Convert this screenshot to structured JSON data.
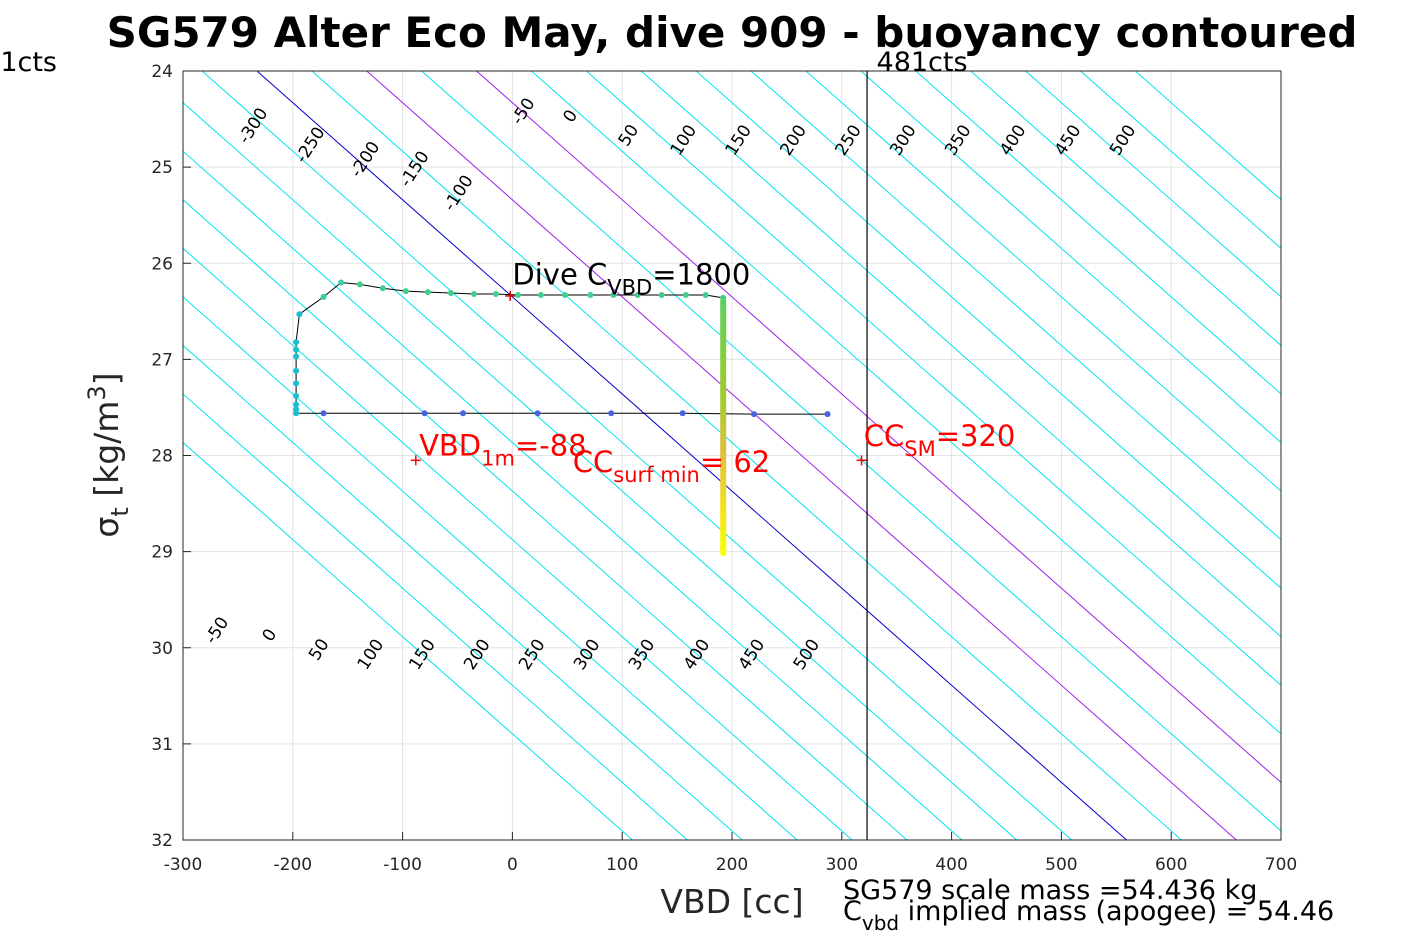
{
  "chart_data": {
    "type": "scatter",
    "title": "SG579 Alter Eco May, dive 909 - buoyancy contoured",
    "xlabel": "VBD [cc]",
    "ylabel": "σ_t [kg/m^3]",
    "xlim": [
      -300,
      700
    ],
    "ylim": [
      24,
      32
    ],
    "y_reversed": true,
    "grid": true,
    "x_ticks": [
      "-300",
      "-200",
      "-100",
      "0",
      "100",
      "200",
      "300",
      "400",
      "500",
      "600",
      "700"
    ],
    "y_ticks": [
      "24",
      "25",
      "26",
      "27",
      "28",
      "29",
      "30",
      "31",
      "32"
    ],
    "contour_slope_cc_per_sigma": 99,
    "contours": [
      {
        "level": -300,
        "color": "#00e5ee"
      },
      {
        "level": -250,
        "color": "#00e5ee"
      },
      {
        "level": -200,
        "color": "#00e5ee"
      },
      {
        "level": -150,
        "color": "#00e5ee"
      },
      {
        "level": -100,
        "color": "#00e5ee"
      },
      {
        "level": -50,
        "color": "#00e5ee"
      },
      {
        "level": 0,
        "color": "#0000cc"
      },
      {
        "level": 50,
        "color": "#00e5ee"
      },
      {
        "level": 100,
        "color": "#a020f0"
      },
      {
        "level": 150,
        "color": "#00e5ee"
      },
      {
        "level": 200,
        "color": "#a020f0"
      },
      {
        "level": 250,
        "color": "#00e5ee"
      },
      {
        "level": 300,
        "color": "#00e5ee"
      },
      {
        "level": 350,
        "color": "#00e5ee"
      },
      {
        "level": 400,
        "color": "#00e5ee"
      },
      {
        "level": 450,
        "color": "#00e5ee"
      },
      {
        "level": 500,
        "color": "#00e5ee"
      }
    ],
    "top_labels": [
      {
        "text": "-300",
        "x": -232,
        "y": 24.6
      },
      {
        "text": "-250",
        "x": -180,
        "y": 24.8
      },
      {
        "text": "-200",
        "x": -130,
        "y": 24.95
      },
      {
        "text": "-150",
        "x": -85,
        "y": 25.05
      },
      {
        "text": "-100",
        "x": -45,
        "y": 25.3
      },
      {
        "text": "-50",
        "x": 14,
        "y": 24.45
      },
      {
        "text": "0",
        "x": 57,
        "y": 24.5
      },
      {
        "text": "50",
        "x": 110,
        "y": 24.7
      },
      {
        "text": "100",
        "x": 160,
        "y": 24.75
      },
      {
        "text": "150",
        "x": 210,
        "y": 24.75
      },
      {
        "text": "200",
        "x": 260,
        "y": 24.75
      },
      {
        "text": "250",
        "x": 310,
        "y": 24.75
      },
      {
        "text": "300",
        "x": 360,
        "y": 24.75
      },
      {
        "text": "350",
        "x": 410,
        "y": 24.75
      },
      {
        "text": "400",
        "x": 460,
        "y": 24.75
      },
      {
        "text": "450",
        "x": 510,
        "y": 24.75
      },
      {
        "text": "500",
        "x": 560,
        "y": 24.75
      }
    ],
    "bottom_labels": [
      {
        "text": "-50",
        "x": -265,
        "y": 29.85
      },
      {
        "text": "0",
        "x": -217,
        "y": 29.9
      },
      {
        "text": "50",
        "x": -172,
        "y": 30.05
      },
      {
        "text": "100",
        "x": -125,
        "y": 30.1
      },
      {
        "text": "150",
        "x": -78,
        "y": 30.1
      },
      {
        "text": "200",
        "x": -28,
        "y": 30.1
      },
      {
        "text": "250",
        "x": 22,
        "y": 30.1
      },
      {
        "text": "300",
        "x": 72,
        "y": 30.1
      },
      {
        "text": "350",
        "x": 122,
        "y": 30.1
      },
      {
        "text": "400",
        "x": 172,
        "y": 30.1
      },
      {
        "text": "450",
        "x": 222,
        "y": 30.1
      },
      {
        "text": "500",
        "x": 272,
        "y": 30.1
      }
    ],
    "series": [
      {
        "name": "dive",
        "points": [
          [
            287,
            27.57
          ],
          [
            220,
            27.57
          ],
          [
            155,
            27.56
          ],
          [
            90,
            27.56
          ],
          [
            23,
            27.56
          ],
          [
            -45,
            27.56
          ],
          [
            -80,
            27.56
          ],
          [
            -172,
            27.56
          ],
          [
            -197,
            27.56
          ],
          [
            -197,
            27.52
          ],
          [
            -197,
            27.47
          ],
          [
            -197,
            27.38
          ],
          [
            -197,
            27.25
          ],
          [
            -197,
            27.12
          ],
          [
            -197,
            26.97
          ],
          [
            -197,
            26.9
          ],
          [
            -197,
            26.82
          ],
          [
            -194,
            26.53
          ],
          [
            -172,
            26.35
          ],
          [
            -156,
            26.2
          ],
          [
            -139,
            26.22
          ],
          [
            -118,
            26.26
          ],
          [
            -97,
            26.29
          ],
          [
            -77,
            26.3
          ],
          [
            -56,
            26.31
          ],
          [
            -35,
            26.32
          ],
          [
            -15,
            26.32
          ],
          [
            5,
            26.33
          ],
          [
            26,
            26.33
          ],
          [
            48,
            26.33
          ],
          [
            71,
            26.33
          ],
          [
            92,
            26.33
          ],
          [
            114,
            26.33
          ],
          [
            136,
            26.33
          ],
          [
            158,
            26.33
          ],
          [
            176,
            26.33
          ],
          [
            192,
            26.36
          ]
        ]
      },
      {
        "name": "surface",
        "x": 192,
        "y_from": 26.36,
        "y_to": 29.05,
        "gradient": [
          "#5fcf5f",
          "#9acd32",
          "#e0c040",
          "#ffff00"
        ]
      }
    ],
    "vertical_line": {
      "x": 323,
      "label": "481cts"
    },
    "left_label": "1cts",
    "markers": [
      {
        "x": -2,
        "y": 26.34,
        "color": "#cc0000"
      },
      {
        "x": -88,
        "y": 28.05,
        "color": "#ff0000"
      },
      {
        "x": 318,
        "y": 28.05,
        "color": "#ff0000"
      }
    ],
    "annotations": {
      "dive_cvbd": {
        "main": "Dive C",
        "sub": "VBD",
        "tail": "=1800",
        "x": 0,
        "y": 26.22
      },
      "vbd_1m": {
        "main": "VBD",
        "sub": "1m",
        "tail": "=-88",
        "x": -85,
        "y": 28.0
      },
      "cc_surf": {
        "main": "CC",
        "sub": "surf min",
        "tail": "= 62",
        "x": 55,
        "y": 28.17
      },
      "cc_sm": {
        "main": "CC",
        "sub": "SM",
        "tail": "=320",
        "x": 320,
        "y": 27.9
      }
    },
    "footer": {
      "line1": "SG579 scale mass =54.436 kg",
      "line2_main": "C",
      "line2_sub": "vbd",
      "line2_tail": " implied mass (apogee) = 54.46"
    }
  }
}
